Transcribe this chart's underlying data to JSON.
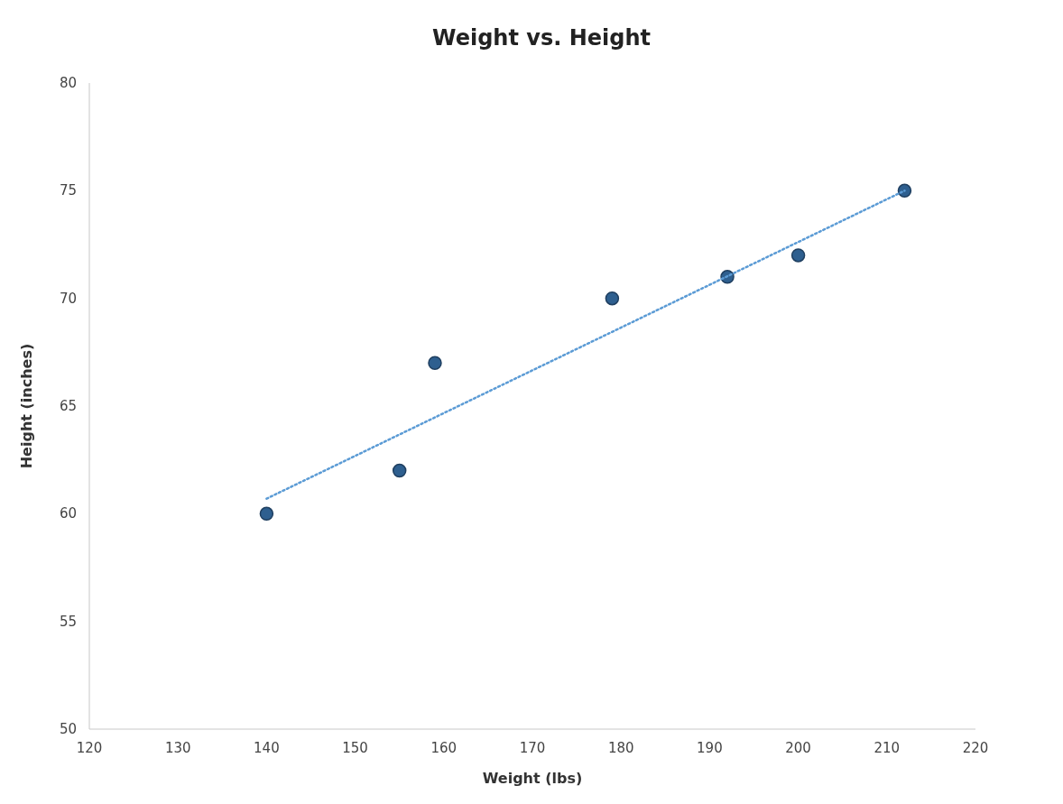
{
  "chart_data": {
    "type": "scatter",
    "title": "Weight vs. Height",
    "xlabel": "Weight (lbs)",
    "ylabel": "Height (inches)",
    "xlim": [
      120,
      220
    ],
    "xticks": [
      120,
      130,
      140,
      150,
      160,
      170,
      180,
      190,
      200,
      210,
      220
    ],
    "ylim": [
      50,
      80
    ],
    "yticks": [
      50,
      55,
      60,
      65,
      70,
      75,
      80
    ],
    "grid": false,
    "marker": "circle",
    "series": [
      {
        "color": "#2e5f8f",
        "x": [
          140,
          155,
          159,
          179,
          192,
          200,
          212
        ],
        "values": [
          60,
          62,
          67,
          70,
          71,
          72,
          75
        ]
      },
      {
        "type": "line",
        "color": "#5b9bd5",
        "line_style": "dotted",
        "marker": "none",
        "x": [
          140,
          212
        ],
        "values": [
          60.7,
          75
        ]
      }
    ]
  }
}
